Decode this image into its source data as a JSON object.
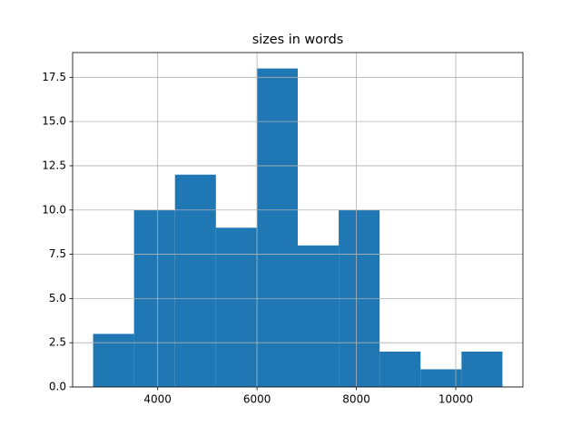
{
  "chart_data": {
    "type": "histogram",
    "title": "sizes in words",
    "bins": [
      2700,
      3524,
      4348,
      5172,
      5996,
      6820,
      7644,
      8468,
      9292,
      10116,
      10940
    ],
    "values": [
      3,
      10,
      12,
      9,
      18,
      8,
      10,
      2,
      1,
      2
    ],
    "color": "#1f77b4",
    "xlim": [
      2288,
      11352
    ],
    "xticks": [
      4000,
      6000,
      8000,
      10000
    ],
    "ylim": [
      0,
      18.9
    ],
    "yticks": [
      {
        "value": 0,
        "label": "0.0"
      },
      2.5,
      {
        "value": 5,
        "label": "5.0"
      },
      7.5,
      {
        "value": 10,
        "label": "10.0"
      },
      12.5,
      {
        "value": 15,
        "label": "15.0"
      },
      17.5
    ],
    "grid": true
  }
}
